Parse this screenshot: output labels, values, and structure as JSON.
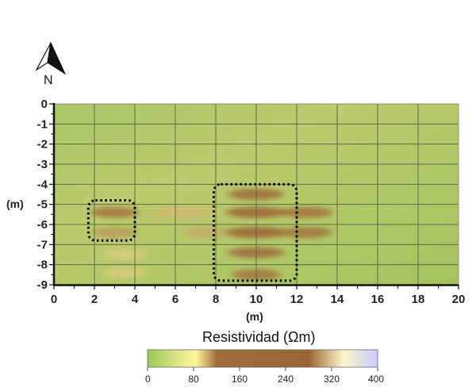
{
  "chart_data": {
    "type": "heatmap",
    "title": "",
    "xlabel": "(m)",
    "ylabel": "(m)",
    "xlim": [
      0,
      20
    ],
    "ylim": [
      -9,
      0
    ],
    "x_ticks": [
      "0",
      "2",
      "4",
      "6",
      "8",
      "10",
      "12",
      "14",
      "16",
      "18",
      "20"
    ],
    "y_ticks": [
      "0",
      "-1",
      "-2",
      "-3",
      "-4",
      "-5",
      "-6",
      "-7",
      "-8",
      "-9"
    ],
    "grid": true,
    "background_value": 40,
    "anomalies": [
      {
        "x": 3.0,
        "y": -5.4,
        "value": 120
      },
      {
        "x": 3.0,
        "y": -6.4,
        "value": 110
      },
      {
        "x": 3.5,
        "y": -7.5,
        "value": 95
      },
      {
        "x": 3.5,
        "y": -8.4,
        "value": 95
      },
      {
        "x": 5.8,
        "y": -5.4,
        "value": 100
      },
      {
        "x": 7.0,
        "y": -5.4,
        "value": 100
      },
      {
        "x": 7.5,
        "y": -6.4,
        "value": 105
      },
      {
        "x": 10.0,
        "y": -4.5,
        "value": 150
      },
      {
        "x": 10.0,
        "y": -5.4,
        "value": 170
      },
      {
        "x": 10.0,
        "y": -6.4,
        "value": 175
      },
      {
        "x": 10.0,
        "y": -7.4,
        "value": 150
      },
      {
        "x": 10.0,
        "y": -8.5,
        "value": 120
      },
      {
        "x": 12.5,
        "y": -5.4,
        "value": 130
      },
      {
        "x": 12.5,
        "y": -6.4,
        "value": 125
      }
    ],
    "highlight_boxes": [
      {
        "x_range": [
          1.7,
          4.0
        ],
        "y_range": [
          -6.8,
          -4.8
        ]
      },
      {
        "x_range": [
          7.9,
          12.0
        ],
        "y_range": [
          -8.8,
          -4.0
        ]
      }
    ],
    "colorbar": {
      "title": "Resistividad (Ωm)",
      "ticks": [
        "0",
        "80",
        "160",
        "240",
        "320",
        "400"
      ],
      "range": [
        0,
        400
      ],
      "stops": [
        {
          "value": 0,
          "color": "#9bc858"
        },
        {
          "value": 70,
          "color": "#f0f098"
        },
        {
          "value": 85,
          "color": "#fbf49a"
        },
        {
          "value": 120,
          "color": "#a06c3c"
        },
        {
          "value": 280,
          "color": "#9b6535"
        },
        {
          "value": 340,
          "color": "#fbf6c8"
        },
        {
          "value": 400,
          "color": "#c8ccff"
        }
      ]
    }
  },
  "north_arrow": {
    "label": "N"
  }
}
